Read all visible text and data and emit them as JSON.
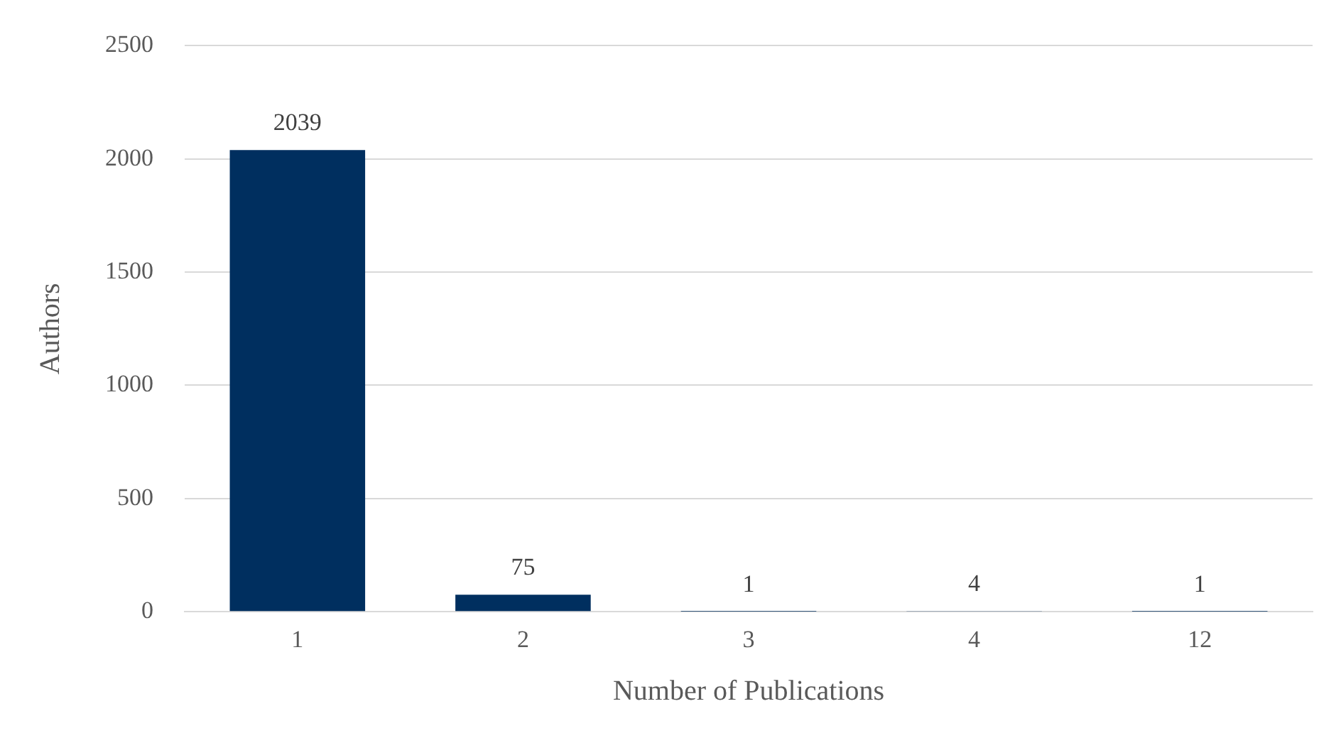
{
  "chart_data": {
    "type": "bar",
    "xlabel": "Number of Publications",
    "ylabel": "Authors",
    "categories": [
      "1",
      "2",
      "3",
      "4",
      "12"
    ],
    "values": [
      2039,
      75,
      1,
      4,
      1
    ],
    "color": "#002f5f",
    "ylim": [
      0,
      2500
    ],
    "yticks": [
      0,
      500,
      1000,
      1500,
      2000,
      2500
    ],
    "grid": "y",
    "data_labels": true
  }
}
